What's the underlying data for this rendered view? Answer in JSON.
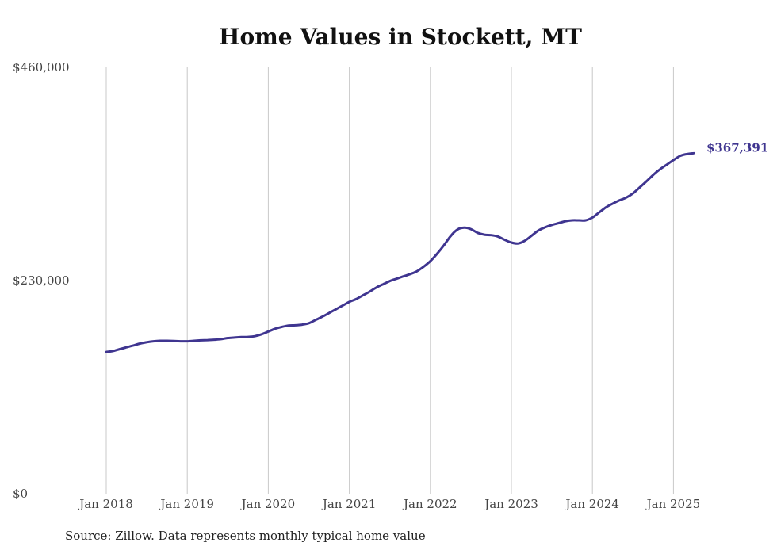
{
  "title": "Home Values in Stockett, MT",
  "source": "Source: Zillow. Data represents monthly typical home value",
  "colors": {
    "line": "#3f3590",
    "grid": "#c8c8c8",
    "text": "#444444"
  },
  "chart_data": {
    "type": "line",
    "title": "Home Values in Stockett, MT",
    "xlabel": "",
    "ylabel": "",
    "ylim": [
      0,
      460000
    ],
    "xlim": [
      "2018-01",
      "2025-04"
    ],
    "grid": "vertical",
    "y_ticks": [
      {
        "value": 0,
        "label": "$0"
      },
      {
        "value": 230000,
        "label": "$230,000"
      },
      {
        "value": 460000,
        "label": "$460,000"
      }
    ],
    "x_ticks": [
      {
        "value": "2018-01",
        "label": "Jan 2018"
      },
      {
        "value": "2019-01",
        "label": "Jan 2019"
      },
      {
        "value": "2020-01",
        "label": "Jan 2020"
      },
      {
        "value": "2021-01",
        "label": "Jan 2021"
      },
      {
        "value": "2022-01",
        "label": "Jan 2022"
      },
      {
        "value": "2023-01",
        "label": "Jan 2023"
      },
      {
        "value": "2024-01",
        "label": "Jan 2024"
      },
      {
        "value": "2025-01",
        "label": "Jan 2025"
      }
    ],
    "end_label": "$367,391",
    "series": [
      {
        "x": [
          "2018-01",
          "2018-02",
          "2018-03",
          "2018-04",
          "2018-05",
          "2018-06",
          "2018-07",
          "2018-08",
          "2018-09",
          "2018-10",
          "2018-11",
          "2018-12",
          "2019-01",
          "2019-02",
          "2019-03",
          "2019-04",
          "2019-05",
          "2019-06",
          "2019-07",
          "2019-08",
          "2019-09",
          "2019-10",
          "2019-11",
          "2019-12",
          "2020-01",
          "2020-02",
          "2020-03",
          "2020-04",
          "2020-05",
          "2020-06",
          "2020-07",
          "2020-08",
          "2020-09",
          "2020-10",
          "2020-11",
          "2020-12",
          "2021-01",
          "2021-02",
          "2021-03",
          "2021-04",
          "2021-05",
          "2021-06",
          "2021-07",
          "2021-08",
          "2021-09",
          "2021-10",
          "2021-11",
          "2021-12",
          "2022-01",
          "2022-02",
          "2022-03",
          "2022-04",
          "2022-05",
          "2022-06",
          "2022-07",
          "2022-08",
          "2022-09",
          "2022-10",
          "2022-11",
          "2022-12",
          "2023-01",
          "2023-02",
          "2023-03",
          "2023-04",
          "2023-05",
          "2023-06",
          "2023-07",
          "2023-08",
          "2023-09",
          "2023-10",
          "2023-11",
          "2023-12",
          "2024-01",
          "2024-02",
          "2024-03",
          "2024-04",
          "2024-05",
          "2024-06",
          "2024-07",
          "2024-08",
          "2024-09",
          "2024-10",
          "2024-11",
          "2024-12",
          "2025-01",
          "2025-02",
          "2025-03",
          "2025-04"
        ],
        "values": [
          153000,
          154000,
          156000,
          158000,
          160000,
          162000,
          163500,
          164500,
          165000,
          165000,
          164800,
          164500,
          164500,
          165000,
          165500,
          165800,
          166200,
          166800,
          168000,
          168500,
          169000,
          169200,
          170000,
          172000,
          175000,
          178000,
          180000,
          181500,
          181800,
          182500,
          184000,
          187500,
          191000,
          195000,
          199000,
          203000,
          207000,
          210000,
          214000,
          218000,
          222500,
          226000,
          229500,
          232000,
          234500,
          237000,
          240000,
          245000,
          251000,
          259000,
          268000,
          278000,
          285000,
          287000,
          285500,
          281500,
          279500,
          279000,
          277500,
          274000,
          271000,
          270000,
          273000,
          278500,
          284000,
          287500,
          290000,
          292000,
          294000,
          295000,
          295000,
          295000,
          298000,
          303500,
          309000,
          313000,
          316500,
          319500,
          324000,
          330500,
          337000,
          344000,
          350000,
          355000,
          360000,
          364500,
          366500,
          367391
        ]
      }
    ]
  }
}
